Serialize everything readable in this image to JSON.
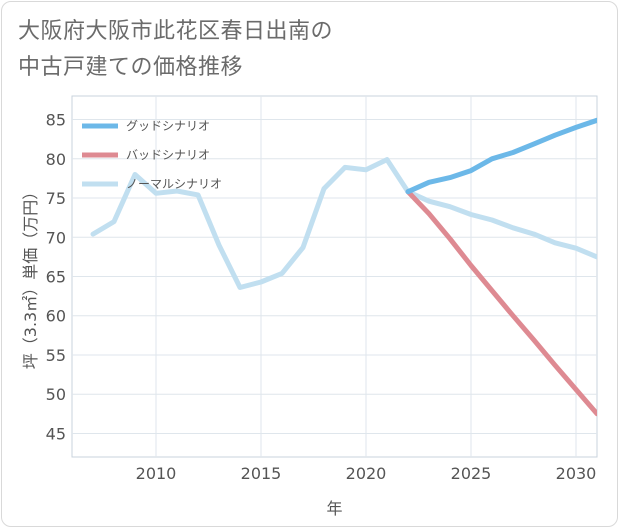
{
  "title_line1": "大阪府大阪市此花区春日出南の",
  "title_line2": "中古戸建ての価格推移",
  "chart_data": {
    "type": "line",
    "xlabel": "年",
    "ylabel": "坪（3.3㎡）単価（万円）",
    "xlim": [
      2006,
      2031
    ],
    "ylim": [
      42,
      88
    ],
    "xticks": [
      2010,
      2015,
      2020,
      2025,
      2030
    ],
    "yticks": [
      45,
      50,
      55,
      60,
      65,
      70,
      75,
      80,
      85
    ],
    "grid": true,
    "legend_position": "top-left",
    "series": [
      {
        "name": "グッドシナリオ",
        "color": "#6cb8e8",
        "x": [
          2022,
          2023,
          2024,
          2025,
          2026,
          2027,
          2028,
          2029,
          2030,
          2031
        ],
        "y": [
          75.8,
          77.0,
          77.6,
          78.5,
          80.0,
          80.8,
          81.9,
          83.0,
          84.0,
          84.9
        ]
      },
      {
        "name": "バッドシナリオ",
        "color": "#de8a92",
        "x": [
          2022,
          2023,
          2024,
          2025,
          2026,
          2027,
          2028,
          2029,
          2030,
          2031
        ],
        "y": [
          75.8,
          73.0,
          69.8,
          66.4,
          63.2,
          60.0,
          56.9,
          53.7,
          50.6,
          47.5
        ]
      },
      {
        "name": "ノーマルシナリオ",
        "color": "#c1dff0",
        "x": [
          2007,
          2008,
          2009,
          2010,
          2011,
          2012,
          2013,
          2014,
          2015,
          2016,
          2017,
          2018,
          2019,
          2020,
          2021,
          2022,
          2023,
          2024,
          2025,
          2026,
          2027,
          2028,
          2029,
          2030,
          2031
        ],
        "y": [
          70.4,
          72.0,
          78.0,
          75.6,
          75.9,
          75.4,
          69.0,
          63.6,
          64.3,
          65.4,
          68.7,
          76.2,
          78.9,
          78.6,
          79.9,
          75.8,
          74.6,
          73.9,
          72.9,
          72.2,
          71.2,
          70.4,
          69.3,
          68.6,
          67.5
        ]
      }
    ]
  }
}
